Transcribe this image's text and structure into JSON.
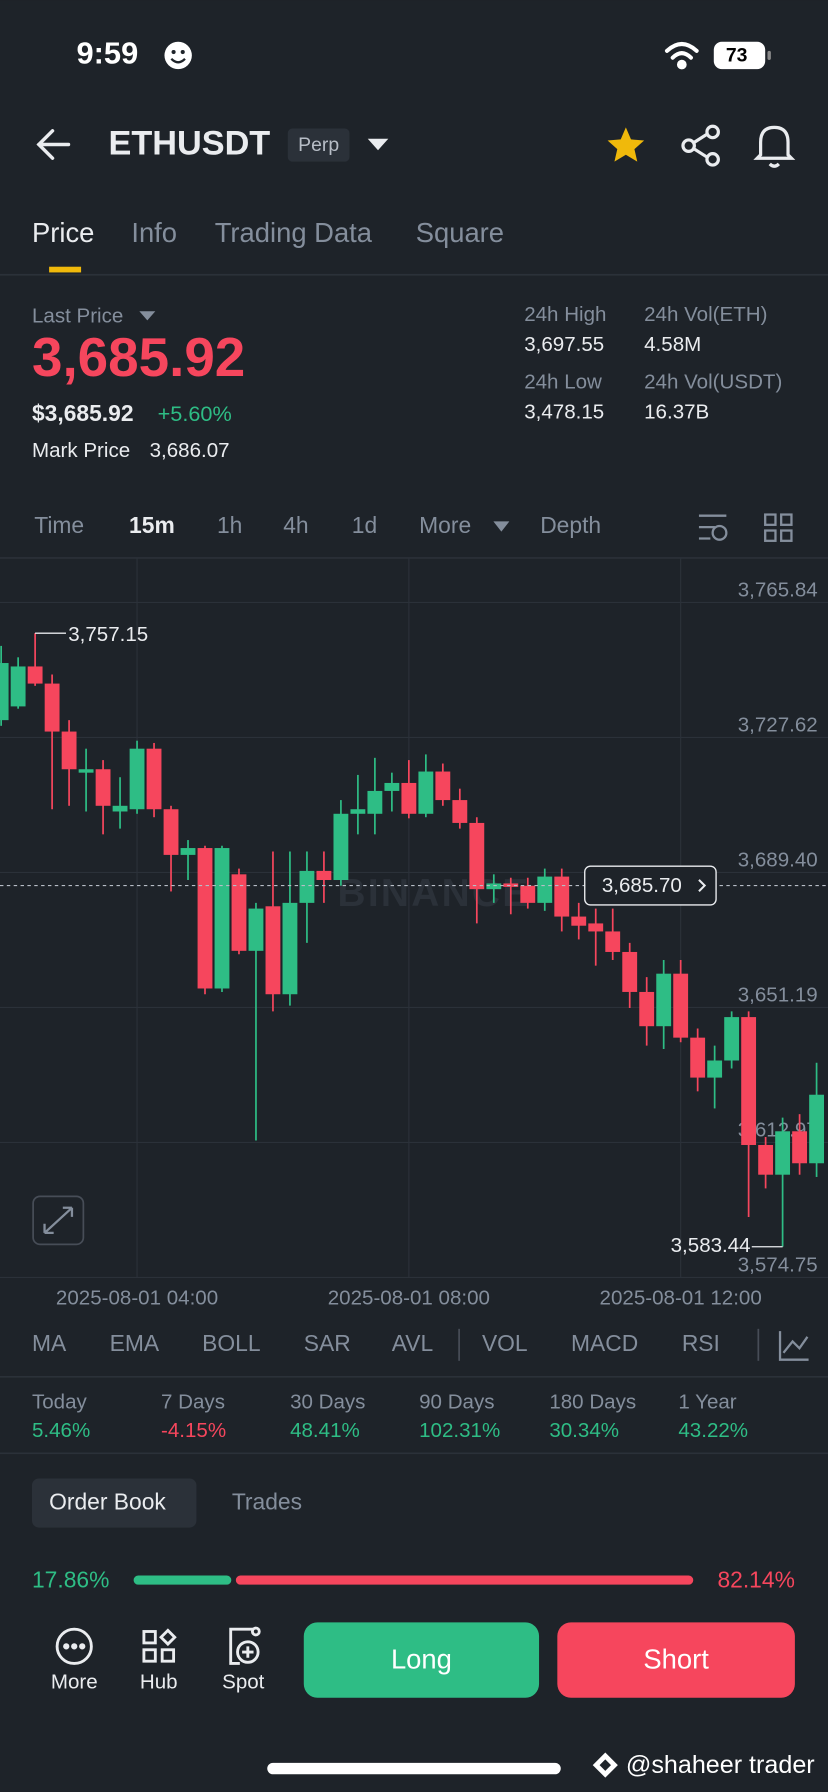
{
  "status_bar": {
    "time": "9:59",
    "battery": "73"
  },
  "header": {
    "symbol": "ETHUSDT",
    "badge": "Perp"
  },
  "tabs": [
    "Price",
    "Info",
    "Trading Data",
    "Square"
  ],
  "ticker": {
    "last_price_label": "Last Price",
    "last_price": "3,685.92",
    "usd_price": "$3,685.92",
    "change": "+5.60%",
    "mark_price_label": "Mark Price",
    "mark_price": "3,686.07",
    "stats": [
      {
        "label": "24h High",
        "value": "3,697.55"
      },
      {
        "label": "24h Vol(ETH)",
        "value": "4.58M"
      },
      {
        "label": "24h Low",
        "value": "3,478.15"
      },
      {
        "label": "24h Vol(USDT)",
        "value": "16.37B"
      }
    ]
  },
  "intervals": [
    "Time",
    "15m",
    "1h",
    "4h",
    "1d",
    "More",
    "Depth"
  ],
  "chart_data": {
    "type": "candlestick",
    "watermark": "BINANCE",
    "up_color": "#2ebd85",
    "down_color": "#f6465d",
    "categories": [
      null,
      null,
      null,
      null,
      null,
      null,
      null,
      null,
      "2025-08-01 04:00",
      null,
      null,
      null,
      null,
      null,
      null,
      null,
      null,
      null,
      null,
      null,
      null,
      null,
      null,
      null,
      "2025-08-01 08:00",
      null,
      null,
      null,
      null,
      null,
      null,
      null,
      null,
      null,
      null,
      null,
      null,
      null,
      null,
      null,
      "2025-08-01 12:00",
      null,
      null,
      null,
      null,
      null,
      null,
      null,
      null
    ],
    "open": [
      3732.53,
      3736.42,
      3747.73,
      3742.88,
      3729.3,
      3717.66,
      3718.63,
      3706.67,
      3707.31,
      3724.45,
      3707.31,
      3694.38,
      3696.32,
      3656.56,
      3688.88,
      3667.22,
      3679.83,
      3654.93,
      3680.8,
      3689.85,
      3687.27,
      3706.02,
      3706.02,
      3712.49,
      3714.75,
      3706.02,
      3717.98,
      3709.9,
      3703.43,
      3684.68,
      3686.3,
      3685.65,
      3680.8,
      3688.24,
      3676.92,
      3674.98,
      3672.71,
      3666.9,
      3655.58,
      3645.88,
      3660.75,
      3642.64,
      3631.33,
      3636.17,
      3648.46,
      3612.25,
      3603.84,
      3616.13,
      3607.08
    ],
    "high": [
      3753.55,
      3750.32,
      3757.15,
      3745.47,
      3732.53,
      3724.45,
      3721.22,
      3716.37,
      3726.71,
      3726.07,
      3708.28,
      3698.58,
      3696.97,
      3696.97,
      3690.5,
      3680.8,
      3695.35,
      3695.35,
      3695.35,
      3695.35,
      3709.9,
      3717.02,
      3721.86,
      3717.66,
      3721.22,
      3722.83,
      3720.25,
      3713.13,
      3705.05,
      3688.88,
      3687.91,
      3687.91,
      3690.5,
      3690.5,
      3680.8,
      3679.18,
      3679.18,
      3669.48,
      3659.78,
      3664.63,
      3664.63,
      3645.23,
      3640.38,
      3650.08,
      3650.08,
      3614.51,
      3620.0,
      3620.98,
      3635.53
    ],
    "low": [
      3730.92,
      3735.77,
      3742.24,
      3707.31,
      3708.28,
      3706.67,
      3700.2,
      3701.82,
      3706.02,
      3705.05,
      3684.03,
      3687.27,
      3654.93,
      3655.58,
      3666.25,
      3613.54,
      3650.08,
      3651.7,
      3669.48,
      3680.8,
      3685.65,
      3700.2,
      3700.2,
      3706.67,
      3704.73,
      3705.05,
      3708.28,
      3701.82,
      3674.98,
      3680.8,
      3677.57,
      3679.18,
      3678.54,
      3672.71,
      3670.45,
      3663.02,
      3664.63,
      3651.05,
      3640.38,
      3639.41,
      3641.35,
      3627.44,
      3622.6,
      3633.91,
      3591.88,
      3599.96,
      3583.44,
      3603.84,
      3603.2
    ],
    "close": [
      3748.7,
      3747.73,
      3742.88,
      3729.3,
      3718.63,
      3718.63,
      3708.28,
      3708.28,
      3724.45,
      3707.31,
      3694.38,
      3696.32,
      3656.56,
      3696.32,
      3667.22,
      3679.18,
      3654.93,
      3680.8,
      3689.85,
      3687.27,
      3706.02,
      3707.31,
      3712.49,
      3714.75,
      3706.02,
      3717.98,
      3709.9,
      3703.43,
      3684.68,
      3686.3,
      3685.33,
      3680.8,
      3688.24,
      3676.92,
      3674.33,
      3672.71,
      3666.9,
      3655.58,
      3645.88,
      3660.75,
      3642.64,
      3631.33,
      3636.17,
      3648.46,
      3612.25,
      3603.84,
      3616.13,
      3607.08,
      3626.48
    ],
    "ylim": [
      3574.75,
      3778.45
    ],
    "yticks": [
      {
        "value": 3765.84,
        "label": "3,765.84"
      },
      {
        "value": 3727.62,
        "label": "3,727.62"
      },
      {
        "value": 3689.4,
        "label": "3,689.40"
      },
      {
        "value": 3651.19,
        "label": "3,651.19"
      },
      {
        "value": 3612.97,
        "label": "3,612.97"
      },
      {
        "value": 3574.75,
        "label": "3,574.75"
      }
    ],
    "grid": true,
    "high_label": {
      "value": 3757.15,
      "label": "3,757.15"
    },
    "low_label": {
      "value": 3583.44,
      "label": "3,583.44"
    },
    "current": {
      "value": 3685.7,
      "label": "3,685.70"
    }
  },
  "indicators": [
    "MA",
    "EMA",
    "BOLL",
    "SAR",
    "AVL",
    "VOL",
    "MACD",
    "RSI"
  ],
  "performance": [
    {
      "period": "Today",
      "change": "5.46%",
      "color": "#2ebd85"
    },
    {
      "period": "7 Days",
      "change": "-4.15%",
      "color": "#f6465d"
    },
    {
      "period": "30 Days",
      "change": "48.41%",
      "color": "#2ebd85"
    },
    {
      "period": "90 Days",
      "change": "102.31%",
      "color": "#2ebd85"
    },
    {
      "period": "180 Days",
      "change": "30.34%",
      "color": "#2ebd85"
    },
    {
      "period": "1 Year",
      "change": "43.22%",
      "color": "#2ebd85"
    }
  ],
  "order_book": {
    "tabs": [
      "Order Book",
      "Trades"
    ],
    "buy": {
      "value": 17.86,
      "label": "17.86%"
    },
    "sell": {
      "value": 82.14,
      "label": "82.14%"
    }
  },
  "bottom_bar": {
    "items": [
      "More",
      "Hub",
      "Spot"
    ],
    "long": "Long",
    "short": "Short"
  },
  "watermark": "@shaheer trader"
}
